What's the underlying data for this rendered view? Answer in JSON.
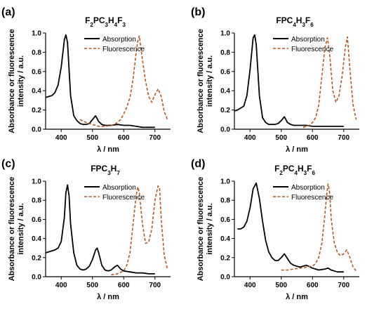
{
  "panels": [
    {
      "letter": "(a)",
      "title_html": "F<tspan baseline-shift=\"sub\" font-size=\"8\">2</tspan>PC<tspan baseline-shift=\"sub\" font-size=\"8\">3</tspan>H<tspan baseline-shift=\"sub\" font-size=\"8\">4</tspan>F<tspan baseline-shift=\"sub\" font-size=\"8\">3</tspan>"
    },
    {
      "letter": "(b)",
      "title_html": "FPC<tspan baseline-shift=\"sub\" font-size=\"8\">4</tspan>H<tspan baseline-shift=\"sub\" font-size=\"8\">3</tspan>F<tspan baseline-shift=\"sub\" font-size=\"8\">6</tspan>"
    },
    {
      "letter": "(c)",
      "title_html": "FPC<tspan baseline-shift=\"sub\" font-size=\"8\">3</tspan>H<tspan baseline-shift=\"sub\" font-size=\"8\">7</tspan>"
    },
    {
      "letter": "(d)",
      "title_html": "F<tspan baseline-shift=\"sub\" font-size=\"8\">2</tspan>PC<tspan baseline-shift=\"sub\" font-size=\"8\">4</tspan>H<tspan baseline-shift=\"sub\" font-size=\"8\">3</tspan>F<tspan baseline-shift=\"sub\" font-size=\"8\">6</tspan>"
    }
  ],
  "colors": {
    "absorption": "#000000",
    "fluorescence": "#b5561e"
  },
  "chart_data": [
    {
      "type": "line",
      "title": "F2PC3H4F3",
      "xlabel": "λ / nm",
      "ylabel": "Absorbance or fluorescence intensity / a.u.",
      "xlim": [
        350,
        750
      ],
      "ylim": [
        0,
        1.0
      ],
      "xticks": [
        400,
        500,
        600,
        700
      ],
      "yticks": [
        0.0,
        0.2,
        0.4,
        0.6,
        0.8,
        1.0
      ],
      "legend": "top-right",
      "series": [
        {
          "name": "Absorption",
          "style": "solid",
          "x": [
            350,
            360,
            370,
            380,
            390,
            400,
            410,
            415,
            420,
            430,
            440,
            450,
            460,
            470,
            480,
            490,
            500,
            510,
            520,
            530,
            540,
            560,
            580,
            600,
            620,
            640,
            660,
            680,
            700
          ],
          "y": [
            0.33,
            0.34,
            0.35,
            0.38,
            0.46,
            0.65,
            0.93,
            0.98,
            0.9,
            0.35,
            0.14,
            0.09,
            0.06,
            0.05,
            0.05,
            0.06,
            0.1,
            0.14,
            0.08,
            0.05,
            0.04,
            0.04,
            0.05,
            0.04,
            0.04,
            0.03,
            0.02,
            0.02,
            0.02
          ]
        },
        {
          "name": "Fluorescence",
          "style": "dashed",
          "x": [
            460,
            480,
            500,
            520,
            540,
            560,
            570,
            580,
            590,
            600,
            610,
            620,
            630,
            640,
            645,
            650,
            660,
            670,
            680,
            690,
            700,
            710,
            720,
            730,
            740
          ],
          "y": [
            0.1,
            0.07,
            0.05,
            0.03,
            0.03,
            0.04,
            0.05,
            0.07,
            0.1,
            0.16,
            0.23,
            0.33,
            0.52,
            0.8,
            0.92,
            0.97,
            0.72,
            0.5,
            0.34,
            0.28,
            0.36,
            0.42,
            0.34,
            0.18,
            0.1
          ]
        }
      ]
    },
    {
      "type": "line",
      "title": "FPC4H3F6",
      "xlabel": "λ / nm",
      "ylabel": "Absorbance or fluorescence intensity / a.u.",
      "xlim": [
        350,
        750
      ],
      "ylim": [
        0,
        1.0
      ],
      "xticks": [
        400,
        500,
        600,
        700
      ],
      "yticks": [
        0.0,
        0.2,
        0.4,
        0.6,
        0.8,
        1.0
      ],
      "legend": "top-right",
      "series": [
        {
          "name": "Absorption",
          "style": "solid",
          "x": [
            350,
            360,
            370,
            380,
            390,
            400,
            410,
            415,
            420,
            430,
            440,
            450,
            460,
            470,
            480,
            490,
            500,
            510,
            520,
            530,
            540,
            560,
            580,
            600,
            620,
            640,
            660,
            680,
            700
          ],
          "y": [
            0.19,
            0.2,
            0.22,
            0.24,
            0.35,
            0.62,
            0.95,
            0.98,
            0.88,
            0.35,
            0.12,
            0.07,
            0.05,
            0.05,
            0.05,
            0.06,
            0.09,
            0.13,
            0.07,
            0.05,
            0.04,
            0.04,
            0.04,
            0.03,
            0.03,
            0.03,
            0.03,
            0.03,
            0.03
          ]
        },
        {
          "name": "Fluorescence",
          "style": "dashed",
          "x": [
            570,
            580,
            590,
            600,
            610,
            620,
            630,
            640,
            648,
            655,
            665,
            675,
            685,
            695,
            705,
            712,
            720,
            730,
            740
          ],
          "y": [
            0.02,
            0.03,
            0.04,
            0.07,
            0.12,
            0.25,
            0.55,
            0.85,
            0.95,
            0.78,
            0.4,
            0.28,
            0.35,
            0.55,
            0.85,
            0.96,
            0.62,
            0.25,
            0.1
          ]
        }
      ]
    },
    {
      "type": "line",
      "title": "FPC3H7",
      "xlabel": "λ / nm",
      "ylabel": "Absorbance or fluorescence intensity / a.u.",
      "xlim": [
        350,
        750
      ],
      "ylim": [
        0,
        1.0
      ],
      "xticks": [
        400,
        500,
        600,
        700
      ],
      "yticks": [
        0.0,
        0.2,
        0.4,
        0.6,
        0.8,
        1.0
      ],
      "legend": "top-right",
      "series": [
        {
          "name": "Absorption",
          "style": "solid",
          "x": [
            350,
            360,
            370,
            380,
            390,
            400,
            410,
            415,
            420,
            425,
            430,
            440,
            450,
            460,
            470,
            480,
            490,
            500,
            510,
            515,
            520,
            530,
            540,
            550,
            560,
            570,
            580,
            590,
            600,
            620,
            640,
            660,
            680,
            700
          ],
          "y": [
            0.25,
            0.26,
            0.27,
            0.28,
            0.3,
            0.37,
            0.62,
            0.88,
            0.96,
            0.85,
            0.55,
            0.25,
            0.12,
            0.08,
            0.07,
            0.08,
            0.11,
            0.18,
            0.28,
            0.3,
            0.25,
            0.12,
            0.07,
            0.06,
            0.07,
            0.1,
            0.12,
            0.08,
            0.06,
            0.05,
            0.04,
            0.04,
            0.03,
            0.03
          ]
        },
        {
          "name": "Fluorescence",
          "style": "dashed",
          "x": [
            560,
            580,
            600,
            610,
            620,
            630,
            640,
            645,
            650,
            660,
            670,
            680,
            690,
            700,
            710,
            715,
            720,
            730,
            740
          ],
          "y": [
            0.02,
            0.03,
            0.06,
            0.12,
            0.25,
            0.55,
            0.85,
            0.94,
            0.88,
            0.55,
            0.35,
            0.36,
            0.5,
            0.8,
            0.95,
            0.93,
            0.6,
            0.22,
            0.08
          ]
        }
      ]
    },
    {
      "type": "line",
      "title": "F2PC4H3F6",
      "xlabel": "λ / nm",
      "ylabel": "Absorbance or fluorescence intensity / a.u.",
      "xlim": [
        350,
        750
      ],
      "ylim": [
        0,
        1.0
      ],
      "xticks": [
        400,
        500,
        600,
        700
      ],
      "yticks": [
        0.0,
        0.2,
        0.4,
        0.6,
        0.8,
        1.0
      ],
      "legend": "top-right",
      "series": [
        {
          "name": "Absorption",
          "style": "solid",
          "x": [
            360,
            370,
            380,
            390,
            400,
            410,
            420,
            430,
            440,
            450,
            460,
            470,
            480,
            490,
            500,
            510,
            520,
            530,
            540,
            560,
            580,
            600,
            620,
            640,
            650,
            660,
            680,
            700
          ],
          "y": [
            0.5,
            0.5,
            0.52,
            0.58,
            0.72,
            0.92,
            0.98,
            0.82,
            0.58,
            0.38,
            0.26,
            0.2,
            0.17,
            0.17,
            0.2,
            0.24,
            0.19,
            0.14,
            0.12,
            0.1,
            0.12,
            0.09,
            0.07,
            0.08,
            0.09,
            0.07,
            0.05,
            0.05
          ]
        },
        {
          "name": "Fluorescence",
          "style": "dashed",
          "x": [
            500,
            520,
            540,
            560,
            580,
            600,
            610,
            620,
            630,
            640,
            645,
            650,
            655,
            660,
            670,
            680,
            690,
            700,
            710,
            720,
            730,
            740
          ],
          "y": [
            0.07,
            0.07,
            0.08,
            0.09,
            0.1,
            0.11,
            0.14,
            0.2,
            0.35,
            0.65,
            0.85,
            0.97,
            0.88,
            0.6,
            0.35,
            0.25,
            0.22,
            0.24,
            0.28,
            0.2,
            0.1,
            0.06
          ]
        }
      ]
    }
  ]
}
